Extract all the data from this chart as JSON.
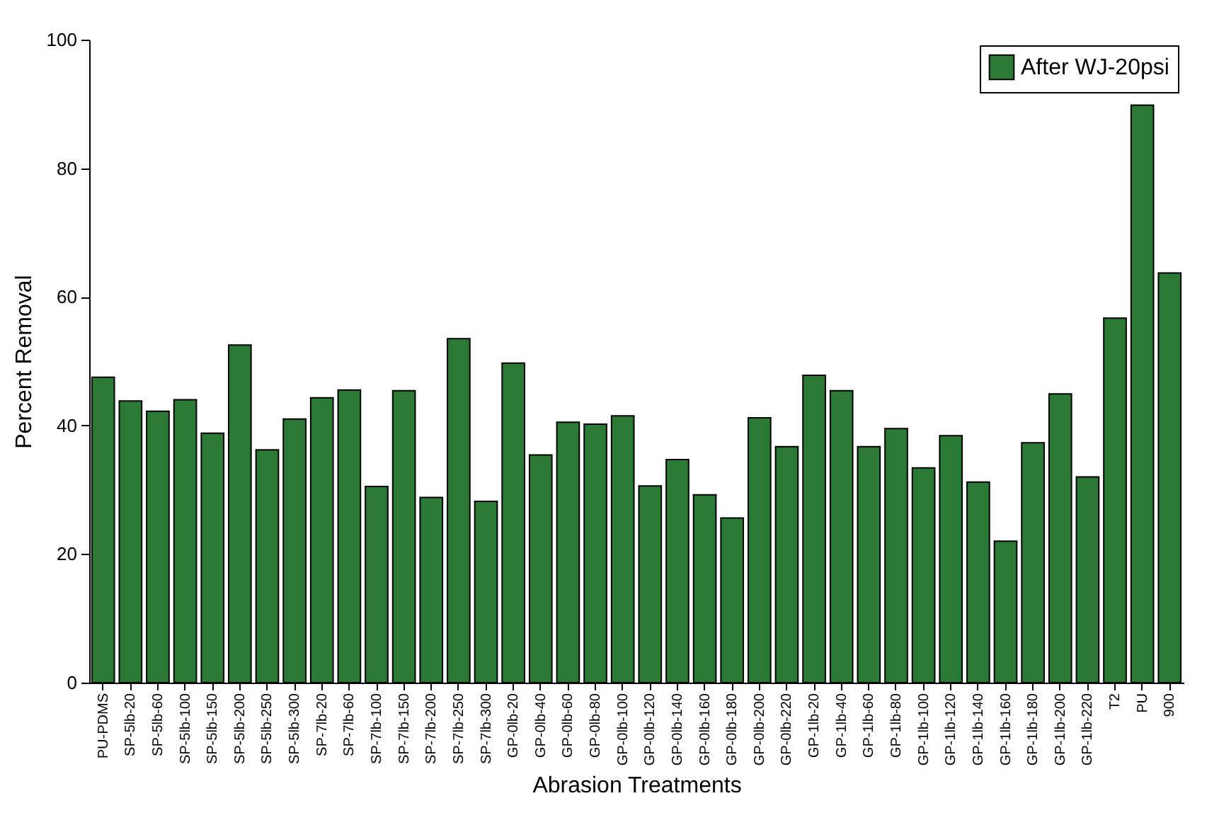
{
  "chart_data": {
    "type": "bar",
    "xlabel": "Abrasion Treatments",
    "ylabel": "Percent Removal",
    "categories": [
      "PU-PDMS",
      "SP-5lb-20",
      "SP-5lb-60",
      "SP-5lb-100",
      "SP-5lb-150",
      "SP-5lb-200",
      "SP-5lb-250",
      "SP-5lb-300",
      "SP-7lb-20",
      "SP-7lb-60",
      "SP-7lb-100",
      "SP-7lb-150",
      "SP-7lb-200",
      "SP-7lb-250",
      "SP-7lb-300",
      "GP-0lb-20",
      "GP-0lb-40",
      "GP-0lb-60",
      "GP-0lb-80",
      "GP-0lb-100",
      "GP-0lb-120",
      "GP-0lb-140",
      "GP-0lb-160",
      "GP-0lb-180",
      "GP-0lb-200",
      "GP-0lb-220",
      "GP-1lb-20",
      "GP-1lb-40",
      "GP-1lb-60",
      "GP-1lb-80",
      "GP-1lb-100",
      "GP-1lb-120",
      "GP-1lb-140",
      "GP-1lb-160",
      "GP-1lb-180",
      "GP-1lb-200",
      "GP-1lb-220",
      "T2",
      "PU",
      "900"
    ],
    "series": [
      {
        "name": "After WJ-20psi",
        "color": "#2a7a36",
        "values": [
          47.5,
          43.8,
          42.2,
          44,
          38.8,
          52.5,
          36.2,
          41,
          44.3,
          45.5,
          30.5,
          45.4,
          28.8,
          53.5,
          28.2,
          49.7,
          35.4,
          40.5,
          40.2,
          41.5,
          30.6,
          34.7,
          29.2,
          25.6,
          41.2,
          36.7,
          47.8,
          45.4,
          36.7,
          39.5,
          33.4,
          38.4,
          31.2,
          22,
          37.3,
          44.9,
          32,
          56.7,
          89.8,
          63.7
        ]
      }
    ],
    "ylim": [
      0,
      100
    ],
    "yticks": [
      0,
      20,
      40,
      60,
      80,
      100
    ],
    "legend": "top right"
  }
}
